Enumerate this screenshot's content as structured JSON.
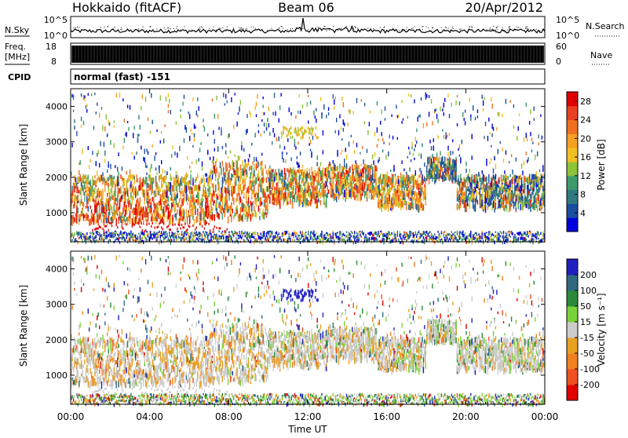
{
  "header": {
    "station": "Hokkaido (fitACF)",
    "beam": "Beam 06",
    "date": "20/Apr/2012"
  },
  "noise_panel": {
    "left_label": "N.Sky",
    "right_label": "N.Search",
    "ticks": [
      "10^5",
      "10^0"
    ],
    "right_ticks": [
      "10^5",
      "10^0"
    ]
  },
  "freq_panel": {
    "left_label_1": "Freq.",
    "left_label_2": "[MHz]",
    "left_ticks": [
      "18",
      "8"
    ],
    "right_ticks": [
      "60",
      "0"
    ],
    "right_label": "Nave"
  },
  "cpid_panel": {
    "label": "CPID",
    "text": "normal (fast) -151"
  },
  "colors": {
    "power_scale": [
      "#0000dd",
      "#1a4fa0",
      "#2f7a80",
      "#3f9a6a",
      "#8ec23a",
      "#f0c020",
      "#f5a020",
      "#f07020",
      "#e84020",
      "#e00000"
    ],
    "velocity_scale": [
      "#2020c0",
      "#2f6a80",
      "#2a8a3a",
      "#7ad23a",
      "#cccccc",
      "#e8a020",
      "#f08020",
      "#f05020",
      "#e00000"
    ]
  },
  "chart_data": [
    {
      "type": "heatmap",
      "ylabel": "Slant Range [km]",
      "ylim": [
        180,
        4500
      ],
      "yticks": [
        1000,
        2000,
        3000,
        4000
      ],
      "xlim_hours": [
        0,
        24
      ],
      "colorbar": {
        "label": "Power [dB]",
        "ticks": [
          "4",
          "8",
          "12",
          "16",
          "20",
          "24",
          "28"
        ],
        "range": [
          0,
          30
        ]
      }
    },
    {
      "type": "heatmap",
      "ylabel": "Slant Range [km]",
      "ylim": [
        180,
        4500
      ],
      "yticks": [
        1000,
        2000,
        3000,
        4000
      ],
      "xlim_hours": [
        0,
        24
      ],
      "colorbar": {
        "label": "Velocity [m s⁻¹]",
        "ticks": [
          "200",
          "100",
          "50",
          "15",
          "-15",
          "-50",
          "-100",
          "-200"
        ]
      }
    }
  ],
  "xaxis": {
    "ticks": [
      "00:00",
      "04:00",
      "08:00",
      "12:00",
      "16:00",
      "20:00",
      "00:00"
    ],
    "label": "Time UT"
  }
}
